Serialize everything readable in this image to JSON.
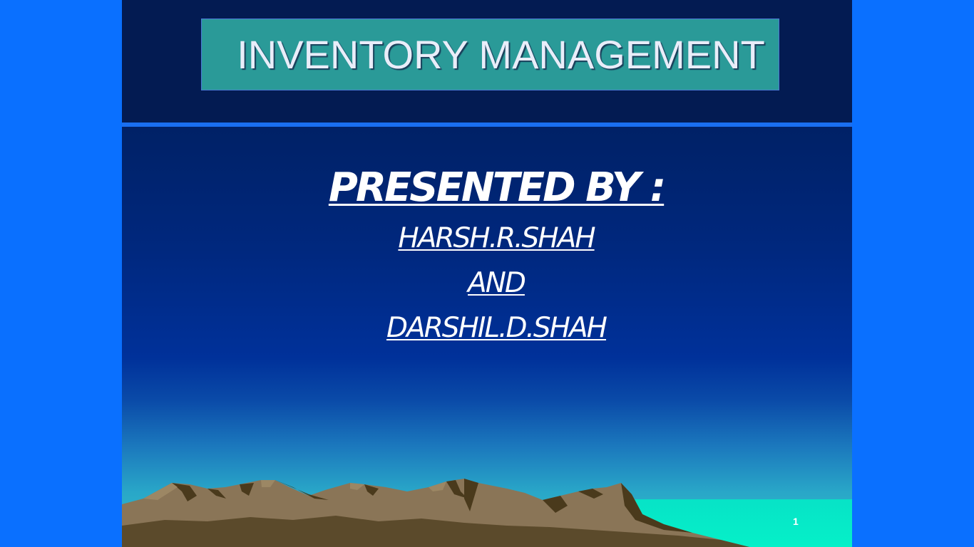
{
  "slide": {
    "title": "INVENTORY MANAGEMENT",
    "presented_by": "PRESENTED BY :",
    "presenter_1": "HARSH.R.SHAH",
    "conjunction": "AND",
    "presenter_2": "DARSHIL.D.SHAH",
    "slide_number": "1"
  },
  "colors": {
    "outer_background": "#0a70ff",
    "header_background": "#031b52",
    "title_box": "#2a9a98",
    "body_top": "#002166",
    "body_bottom": "#2fc0cc",
    "water": "#05f0c8",
    "mountain_light": "#8a7557",
    "mountain_dark": "#4a3a1c"
  },
  "decorations": {
    "background_art": "mountain-landscape-illustration"
  }
}
